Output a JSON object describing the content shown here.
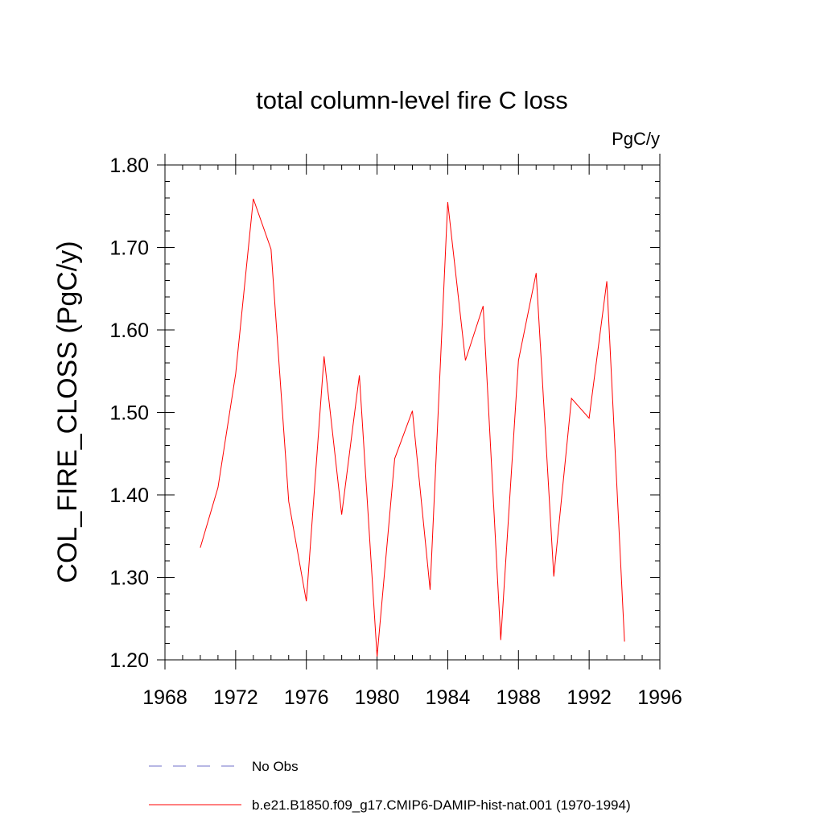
{
  "chart_data": {
    "type": "line",
    "title": "total column-level fire C loss",
    "units": "PgC/y",
    "ylabel": "COL_FIRE_CLOSS  (PgC/y)",
    "xlabel": "",
    "xlim": [
      1968,
      1996
    ],
    "ylim": [
      1.2,
      1.8
    ],
    "x_ticks": [
      1968,
      1972,
      1976,
      1980,
      1984,
      1988,
      1992,
      1996
    ],
    "y_ticks": [
      "1.20",
      "1.30",
      "1.40",
      "1.50",
      "1.60",
      "1.70",
      "1.80"
    ],
    "grid": false,
    "legend_position": "bottom",
    "series": [
      {
        "name": "No Obs",
        "color": "#6f6fc8",
        "dash": "dashed",
        "x": [],
        "y": []
      },
      {
        "name": "b.e21.B1850.f09_g17.CMIP6-DAMIP-hist-nat.001 (1970-1994)",
        "color": "#ff0000",
        "dash": "solid",
        "x": [
          1970,
          1971,
          1972,
          1973,
          1974,
          1975,
          1976,
          1977,
          1978,
          1979,
          1980,
          1981,
          1982,
          1983,
          1984,
          1985,
          1986,
          1987,
          1988,
          1989,
          1990,
          1991,
          1992,
          1993,
          1994
        ],
        "y": [
          1.336,
          1.409,
          1.547,
          1.759,
          1.698,
          1.392,
          1.271,
          1.568,
          1.376,
          1.545,
          1.204,
          1.444,
          1.502,
          1.285,
          1.755,
          1.563,
          1.629,
          1.224,
          1.563,
          1.669,
          1.301,
          1.517,
          1.493,
          1.659,
          1.222
        ]
      }
    ]
  }
}
